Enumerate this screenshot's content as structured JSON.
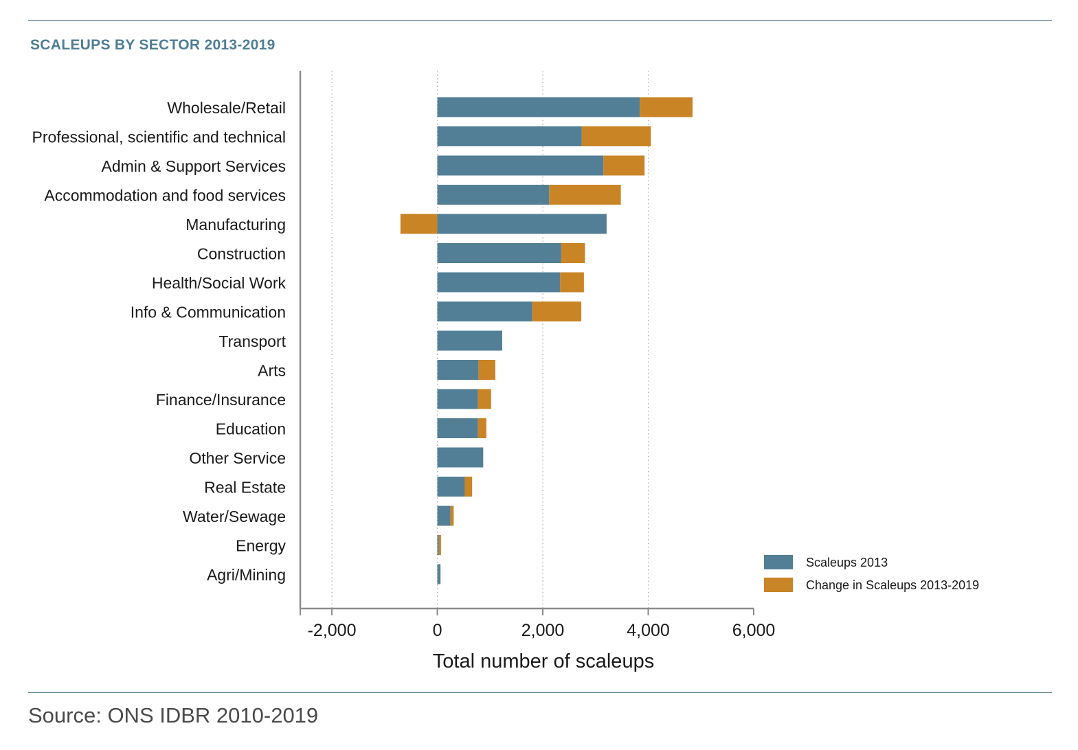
{
  "title": "SCALEUPS BY SECTOR 2013-2019",
  "source": "Source: ONS IDBR 2010-2019",
  "colors": {
    "base": "#527f96",
    "change": "#c98425",
    "rule": "#5b7f95",
    "title": "#4f7d95"
  },
  "chart_data": {
    "type": "bar",
    "orientation": "horizontal",
    "stacked": true,
    "categories": [
      "Wholesale/Retail",
      "Professional, scientific and technical",
      "Admin & Support Services",
      "Accommodation and food services",
      "Manufacturing",
      "Construction",
      "Health/Social Work",
      "Info & Communication",
      "Transport",
      "Arts",
      "Finance/Insurance",
      "Education",
      "Other Service",
      "Real Estate",
      "Water/Sewage",
      "Energy",
      "Agri/Mining"
    ],
    "series": [
      {
        "name": "Scaleups 2013",
        "color": "#527f96",
        "values": [
          3840,
          2740,
          3150,
          2120,
          3210,
          2350,
          2330,
          1800,
          1230,
          780,
          770,
          770,
          870,
          520,
          250,
          30,
          60
        ]
      },
      {
        "name": "Change in Scaleups 2013-2019",
        "color": "#c98425",
        "values": [
          1000,
          1310,
          780,
          1360,
          -700,
          450,
          450,
          930,
          0,
          320,
          250,
          160,
          0,
          140,
          60,
          40,
          0
        ]
      }
    ],
    "xlabel": "Total number of scaleups",
    "ylabel": "",
    "xlim": [
      -2600,
      6000
    ],
    "xticks": [
      -2000,
      0,
      2000,
      4000,
      6000
    ],
    "xtick_labels": [
      "-2,000",
      "0",
      "2,000",
      "4,000",
      "6,000"
    ],
    "grid": "vertical dotted",
    "legend": "bottom-right"
  }
}
